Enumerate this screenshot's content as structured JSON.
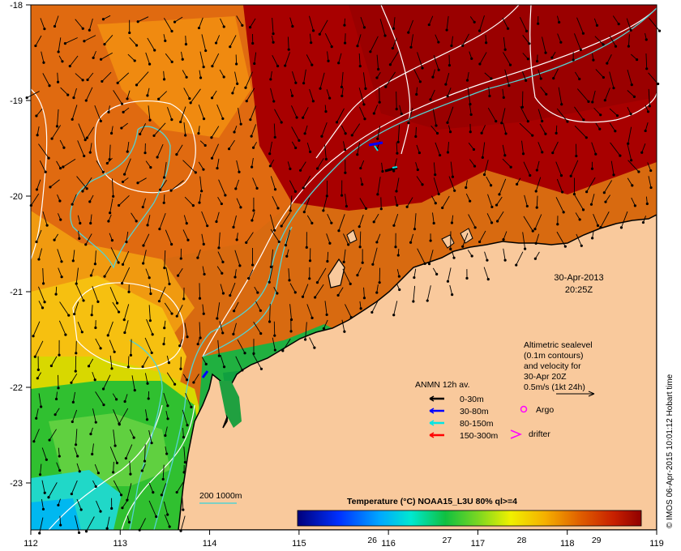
{
  "map": {
    "lon_ticks": [
      "112",
      "113",
      "114",
      "115",
      "116",
      "117",
      "118",
      "119"
    ],
    "lat_ticks": [
      "-18",
      "-19",
      "-20",
      "-21",
      "-22",
      "-23"
    ],
    "date_line1": "30-Apr-2013",
    "date_line2": "20:25Z",
    "credit": "© IMOS 06-Apr-2015 10:01:12 Hobart time",
    "colors": {
      "land": "#f9c99c",
      "sea_warm": "#a80000",
      "coast": "#000000",
      "ssh_contour": "#ffffff",
      "isobath": "#55d2d2"
    }
  },
  "altimetry_note": {
    "lines": [
      "Altimetric sealevel",
      "(0.1m contours)",
      "and velocity for",
      "30-Apr 20Z",
      "0.5m/s (1kt 24h)"
    ]
  },
  "anmn_legend": {
    "title": "ANMN 12h av.",
    "items": [
      {
        "label": "0-30m",
        "color": "#000000"
      },
      {
        "label": "30-80m",
        "color": "#0000ff"
      },
      {
        "label": "80-150m",
        "color": "#00e5e5"
      },
      {
        "label": "150-300m",
        "color": "#ff0000"
      }
    ]
  },
  "markers": {
    "argo_label": "Argo",
    "argo_color": "#ff00ff",
    "drifter_label": "drifter",
    "drifter_color": "#ff00ff"
  },
  "isobath_legend": {
    "label": "200  1000m"
  },
  "colorbar": {
    "title": "Temperature (°C) NOAA15_L3U 80% ql>=4",
    "ticks": [
      "26",
      "27",
      "28",
      "29"
    ],
    "range": [
      25.0,
      29.6
    ]
  }
}
